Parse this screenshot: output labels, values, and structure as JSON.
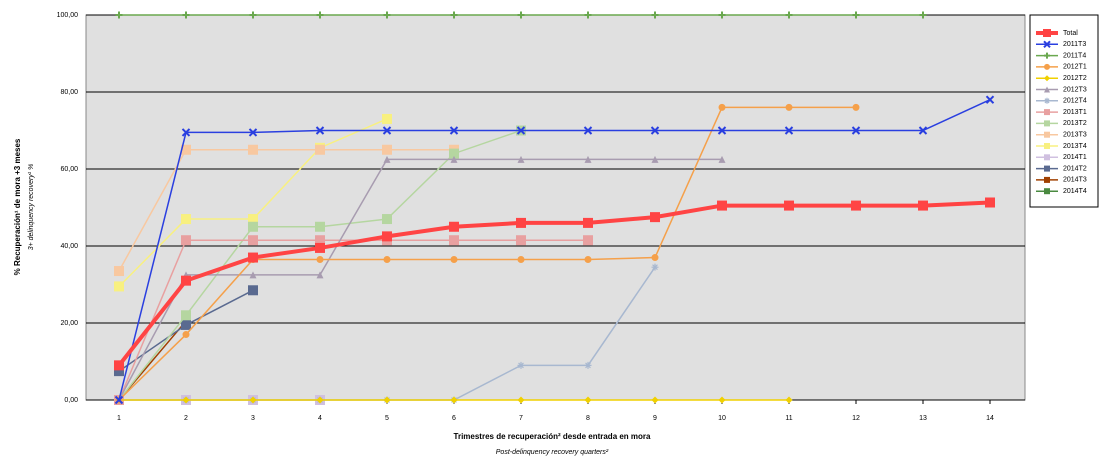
{
  "chart_data": {
    "type": "line",
    "y_label": "% Recuperación¹ de mora +3 meses",
    "y_label_en": "3+ delinquency recovery¹ %",
    "x_label": "Trimestres de recuperación² desde entrada en mora",
    "x_label_en": "Post-delinquency recovery quarters²",
    "categories": [
      "1",
      "2",
      "3",
      "4",
      "5",
      "6",
      "7",
      "8",
      "9",
      "10",
      "11",
      "12",
      "13",
      "14"
    ],
    "ylim": [
      0,
      100
    ],
    "yticks": [
      {
        "value": 0,
        "label": "0,00"
      },
      {
        "value": 20,
        "label": "20,00"
      },
      {
        "value": 40,
        "label": "40,00"
      },
      {
        "value": 60,
        "label": "60,00"
      },
      {
        "value": 80,
        "label": "80,00"
      },
      {
        "value": 100,
        "label": "100,00"
      }
    ],
    "grid": true,
    "legend": "right",
    "series": [
      {
        "name": "Total",
        "color": "#ff4444",
        "marker": "square",
        "values": [
          9,
          31,
          37,
          39.5,
          42.5,
          45,
          46,
          46,
          47.5,
          50.5,
          50.5,
          50.5,
          50.5,
          51.3
        ]
      },
      {
        "name": "2011T3",
        "color": "#2a3fe0",
        "marker": "x",
        "values": [
          0,
          69.5,
          69.5,
          70,
          70,
          70,
          70,
          70,
          70,
          70,
          70,
          70,
          70,
          78
        ]
      },
      {
        "name": "2011T4",
        "color": "#6aa84f",
        "marker": "plus",
        "values": [
          100,
          100,
          100,
          100,
          100,
          100,
          100,
          100,
          100,
          100,
          100,
          100,
          100,
          null
        ]
      },
      {
        "name": "2012T1",
        "color": "#f5a04a",
        "marker": "circle",
        "values": [
          0,
          17,
          36.5,
          36.5,
          36.5,
          36.5,
          36.5,
          36.5,
          37,
          76,
          76,
          76,
          null,
          null
        ]
      },
      {
        "name": "2012T2",
        "color": "#f0d000",
        "marker": "diamond",
        "values": [
          0,
          0,
          0,
          0,
          0,
          0,
          0,
          0,
          0,
          0,
          0,
          null,
          null,
          null
        ]
      },
      {
        "name": "2012T3",
        "color": "#a89cb0",
        "marker": "triangle",
        "values": [
          0,
          32.5,
          32.5,
          32.5,
          62.5,
          62.5,
          62.5,
          62.5,
          62.5,
          62.5,
          null,
          null,
          null,
          null
        ]
      },
      {
        "name": "2012T4",
        "color": "#a8b8d0",
        "marker": "star",
        "values": [
          0,
          0,
          0,
          0,
          0,
          0,
          9,
          9,
          34.5,
          null,
          null,
          null,
          null,
          null
        ]
      },
      {
        "name": "2013T1",
        "color": "#e8a0a0",
        "marker": "square",
        "values": [
          0,
          41.5,
          41.5,
          41.5,
          41.5,
          41.5,
          41.5,
          41.5,
          null,
          null,
          null,
          null,
          null,
          null
        ]
      },
      {
        "name": "2013T2",
        "color": "#b5d6a0",
        "marker": "square",
        "values": [
          0,
          22,
          45,
          45,
          47,
          64,
          70,
          null,
          null,
          null,
          null,
          null,
          null,
          null
        ]
      },
      {
        "name": "2013T3",
        "color": "#f8c8a0",
        "marker": "square",
        "values": [
          33.5,
          65,
          65,
          65,
          65,
          65,
          null,
          null,
          null,
          null,
          null,
          null,
          null,
          null
        ]
      },
      {
        "name": "2013T4",
        "color": "#f8f080",
        "marker": "square",
        "values": [
          29.5,
          47,
          47,
          65.5,
          73,
          null,
          null,
          null,
          null,
          null,
          null,
          null,
          null,
          null
        ]
      },
      {
        "name": "2014T1",
        "color": "#d0c0e0",
        "marker": "square",
        "values": [
          0,
          0,
          0,
          0,
          null,
          null,
          null,
          null,
          null,
          null,
          null,
          null,
          null,
          null
        ]
      },
      {
        "name": "2014T2",
        "color": "#5a6a90",
        "marker": "square",
        "values": [
          7.5,
          19.5,
          28.5,
          null,
          null,
          null,
          null,
          null,
          null,
          null,
          null,
          null,
          null,
          null
        ]
      },
      {
        "name": "2014T3",
        "color": "#a04000",
        "marker": "square",
        "values": [
          0,
          20.5,
          null,
          null,
          null,
          null,
          null,
          null,
          null,
          null,
          null,
          null,
          null,
          null
        ]
      },
      {
        "name": "2014T4",
        "color": "#4a8a40",
        "marker": "square",
        "values": [
          0,
          null,
          null,
          null,
          null,
          null,
          null,
          null,
          null,
          null,
          null,
          null,
          null,
          null
        ]
      }
    ]
  }
}
